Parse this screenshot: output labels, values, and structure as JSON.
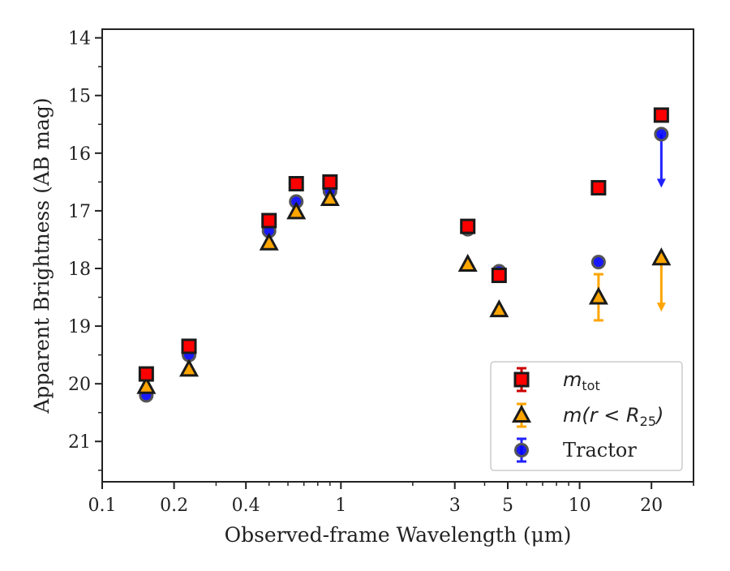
{
  "chart_data": {
    "type": "scatter",
    "title": "",
    "xlabel": "Observed-frame Wavelength (μm)",
    "ylabel": "Apparent Brightness (AB mag)",
    "xscale": "log",
    "xlim": [
      0.1,
      30
    ],
    "ylim": [
      21.7,
      13.85
    ],
    "y_inverted": true,
    "xticks": [
      0.1,
      0.2,
      0.4,
      1,
      3,
      5,
      10,
      20
    ],
    "xtick_labels": [
      "0.1",
      "0.2",
      "0.4",
      "1",
      "3",
      "5",
      "10",
      "20"
    ],
    "yticks": [
      14,
      15,
      16,
      17,
      18,
      19,
      20,
      21
    ],
    "ytick_labels": [
      "14",
      "15",
      "16",
      "17",
      "18",
      "19",
      "20",
      "21"
    ],
    "grid": false,
    "legend_position": "bottom-right",
    "series": [
      {
        "key": "mtot",
        "legend_math": "m",
        "legend_sub": "tot",
        "marker": "square",
        "color": "#ff0000",
        "edge_color": "#1a1a1a",
        "error_color": "#cc0000",
        "points": [
          {
            "x": 0.153,
            "y": 19.83
          },
          {
            "x": 0.231,
            "y": 19.35
          },
          {
            "x": 0.5,
            "y": 17.17
          },
          {
            "x": 0.65,
            "y": 16.53
          },
          {
            "x": 0.9,
            "y": 16.5
          },
          {
            "x": 3.4,
            "y": 17.27
          },
          {
            "x": 4.6,
            "y": 18.12
          },
          {
            "x": 12.0,
            "y": 16.6
          },
          {
            "x": 22.0,
            "y": 15.34
          }
        ]
      },
      {
        "key": "mr25",
        "legend_math": "m(r < R",
        "legend_sub": "25",
        "legend_close": ")",
        "marker": "triangle",
        "color": "#ffa500",
        "edge_color": "#1a1a1a",
        "error_color": "#ffa500",
        "points": [
          {
            "x": 0.153,
            "y": 20.05
          },
          {
            "x": 0.231,
            "y": 19.75
          },
          {
            "x": 0.5,
            "y": 17.56
          },
          {
            "x": 0.65,
            "y": 17.02
          },
          {
            "x": 0.9,
            "y": 16.79
          },
          {
            "x": 3.4,
            "y": 17.93
          },
          {
            "x": 4.6,
            "y": 18.72
          },
          {
            "x": 12.0,
            "y": 18.5,
            "yerr": 0.4
          },
          {
            "x": 22.0,
            "y": 17.82,
            "upper_limit": true,
            "arrow_to": 18.72
          }
        ]
      },
      {
        "key": "tractor",
        "name": "Tractor",
        "marker": "circle",
        "color": "#0000ff",
        "edge_color": "#555555",
        "error_color": "#2222ff",
        "points": [
          {
            "x": 0.153,
            "y": 20.2
          },
          {
            "x": 0.231,
            "y": 19.5
          },
          {
            "x": 0.5,
            "y": 17.35
          },
          {
            "x": 0.65,
            "y": 16.84
          },
          {
            "x": 0.9,
            "y": 16.66
          },
          {
            "x": 3.4,
            "y": 17.32
          },
          {
            "x": 4.6,
            "y": 18.05
          },
          {
            "x": 12.0,
            "y": 17.89
          },
          {
            "x": 22.0,
            "y": 15.67,
            "upper_limit": true,
            "arrow_to": 16.57
          }
        ]
      }
    ]
  }
}
